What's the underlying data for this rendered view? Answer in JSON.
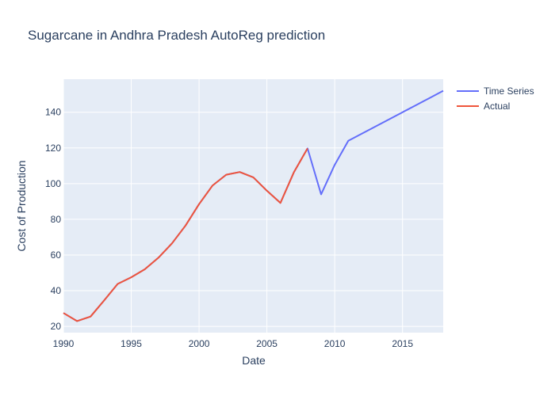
{
  "chart_data": {
    "type": "line",
    "title": "Sugarcane in Andhra Pradesh AutoReg prediction",
    "xlabel": "Date",
    "ylabel": "Cost of Production",
    "xlim": [
      1990,
      2018
    ],
    "ylim": [
      16.5,
      158.5
    ],
    "x_ticks": [
      1990,
      1995,
      2000,
      2005,
      2010,
      2015
    ],
    "y_ticks": [
      20,
      40,
      60,
      80,
      100,
      120,
      140
    ],
    "grid": true,
    "legend_position": "top-right",
    "colors": {
      "plot_bg": "#e5ecf6",
      "grid": "#ffffff",
      "text": "#2a3f5f"
    },
    "series": [
      {
        "name": "Time Series",
        "color": "#636efa",
        "x": [
          1990,
          1991,
          1992,
          1993,
          1994,
          1995,
          1996,
          1997,
          1998,
          1999,
          2000,
          2001,
          2002,
          2003,
          2004,
          2005,
          2006,
          2007,
          2008,
          2009,
          2010,
          2011,
          2012,
          2013,
          2014,
          2015,
          2016,
          2017,
          2018
        ],
        "y": [
          27.5,
          23,
          25.5,
          34.5,
          43.8,
          47.5,
          52,
          58.5,
          66.5,
          76.5,
          88.5,
          99,
          105,
          106.5,
          103.5,
          96,
          89.2,
          106.5,
          119.7,
          94,
          110.5,
          124,
          128,
          132,
          136,
          140,
          144,
          148,
          152
        ]
      },
      {
        "name": "Actual",
        "color": "#ef553b",
        "x": [
          1990,
          1991,
          1992,
          1993,
          1994,
          1995,
          1996,
          1997,
          1998,
          1999,
          2000,
          2001,
          2002,
          2003,
          2004,
          2005,
          2006,
          2007,
          2008
        ],
        "y": [
          27.5,
          23,
          25.5,
          34.5,
          43.8,
          47.5,
          52,
          58.5,
          66.5,
          76.5,
          88.5,
          99,
          105,
          106.5,
          103.5,
          96,
          89.2,
          106.5,
          119.7
        ]
      }
    ]
  }
}
